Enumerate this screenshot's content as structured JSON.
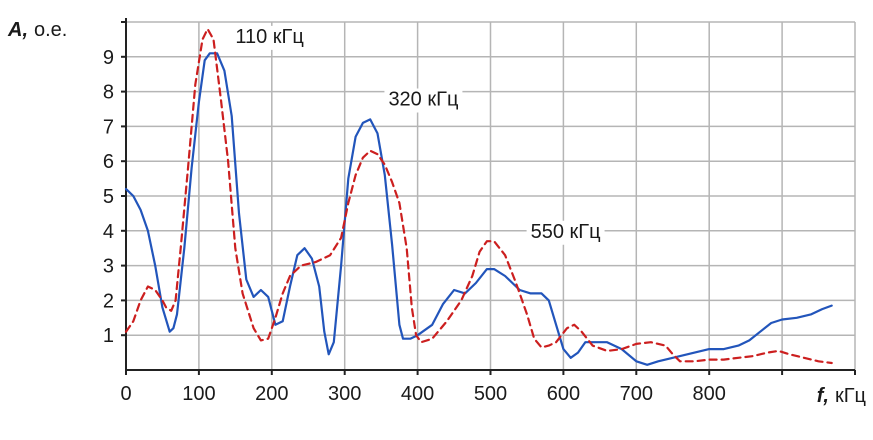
{
  "chart_data": {
    "type": "line",
    "xlabel_var": "f,",
    "xlabel_unit": "кГц",
    "ylabel_var": "A,",
    "ylabel_unit": "о.е.",
    "xlim": [
      0,
      1000
    ],
    "ylim": [
      0,
      10
    ],
    "x_ticks": [
      "0",
      "100",
      "200",
      "300",
      "400",
      "500",
      "600",
      "700",
      "800"
    ],
    "y_ticks": [
      "1",
      "2",
      "3",
      "4",
      "5",
      "6",
      "7",
      "8",
      "9"
    ],
    "grid": true,
    "annotations": [
      {
        "text": "110 кГц",
        "x": 150,
        "y": 9.4
      },
      {
        "text": "320 кГц",
        "x": 360,
        "y": 7.6
      },
      {
        "text": "550 кГц",
        "x": 555,
        "y": 3.8
      }
    ],
    "series": [
      {
        "style": "solid",
        "color": "#2255bb",
        "points": [
          [
            0,
            5.2
          ],
          [
            10,
            5.0
          ],
          [
            20,
            4.6
          ],
          [
            30,
            4.0
          ],
          [
            40,
            3.0
          ],
          [
            50,
            1.8
          ],
          [
            60,
            1.1
          ],
          [
            65,
            1.2
          ],
          [
            70,
            1.6
          ],
          [
            80,
            3.5
          ],
          [
            90,
            5.8
          ],
          [
            100,
            7.7
          ],
          [
            108,
            8.9
          ],
          [
            115,
            9.1
          ],
          [
            125,
            9.1
          ],
          [
            135,
            8.6
          ],
          [
            145,
            7.3
          ],
          [
            155,
            4.5
          ],
          [
            165,
            2.6
          ],
          [
            175,
            2.1
          ],
          [
            185,
            2.3
          ],
          [
            195,
            2.1
          ],
          [
            205,
            1.3
          ],
          [
            215,
            1.4
          ],
          [
            225,
            2.4
          ],
          [
            235,
            3.3
          ],
          [
            245,
            3.5
          ],
          [
            255,
            3.2
          ],
          [
            265,
            2.4
          ],
          [
            272,
            1.1
          ],
          [
            278,
            0.45
          ],
          [
            285,
            0.8
          ],
          [
            295,
            3.0
          ],
          [
            305,
            5.5
          ],
          [
            315,
            6.7
          ],
          [
            325,
            7.1
          ],
          [
            335,
            7.2
          ],
          [
            345,
            6.8
          ],
          [
            355,
            5.6
          ],
          [
            365,
            3.6
          ],
          [
            375,
            1.3
          ],
          [
            380,
            0.9
          ],
          [
            390,
            0.9
          ],
          [
            400,
            1.0
          ],
          [
            420,
            1.3
          ],
          [
            435,
            1.9
          ],
          [
            450,
            2.3
          ],
          [
            465,
            2.2
          ],
          [
            480,
            2.5
          ],
          [
            495,
            2.9
          ],
          [
            505,
            2.9
          ],
          [
            520,
            2.7
          ],
          [
            540,
            2.3
          ],
          [
            555,
            2.2
          ],
          [
            570,
            2.2
          ],
          [
            580,
            2.0
          ],
          [
            590,
            1.3
          ],
          [
            600,
            0.6
          ],
          [
            610,
            0.35
          ],
          [
            620,
            0.5
          ],
          [
            630,
            0.8
          ],
          [
            645,
            0.8
          ],
          [
            660,
            0.8
          ],
          [
            680,
            0.6
          ],
          [
            700,
            0.25
          ],
          [
            715,
            0.15
          ],
          [
            730,
            0.25
          ],
          [
            750,
            0.35
          ],
          [
            780,
            0.5
          ],
          [
            800,
            0.6
          ],
          [
            820,
            0.6
          ],
          [
            840,
            0.7
          ],
          [
            855,
            0.85
          ],
          [
            870,
            1.1
          ],
          [
            885,
            1.35
          ],
          [
            900,
            1.45
          ],
          [
            920,
            1.5
          ],
          [
            940,
            1.6
          ],
          [
            955,
            1.75
          ],
          [
            968,
            1.85
          ]
        ]
      },
      {
        "style": "dashed",
        "color": "#cc1f1f",
        "points": [
          [
            0,
            1.1
          ],
          [
            10,
            1.4
          ],
          [
            20,
            2.0
          ],
          [
            30,
            2.4
          ],
          [
            40,
            2.3
          ],
          [
            50,
            2.0
          ],
          [
            55,
            1.8
          ],
          [
            62,
            1.7
          ],
          [
            68,
            2.0
          ],
          [
            75,
            3.5
          ],
          [
            85,
            5.8
          ],
          [
            95,
            8.2
          ],
          [
            105,
            9.5
          ],
          [
            112,
            9.8
          ],
          [
            120,
            9.5
          ],
          [
            130,
            7.8
          ],
          [
            140,
            6.0
          ],
          [
            150,
            3.5
          ],
          [
            160,
            2.2
          ],
          [
            175,
            1.2
          ],
          [
            185,
            0.85
          ],
          [
            195,
            0.9
          ],
          [
            205,
            1.5
          ],
          [
            215,
            2.2
          ],
          [
            225,
            2.7
          ],
          [
            240,
            3.0
          ],
          [
            260,
            3.1
          ],
          [
            280,
            3.3
          ],
          [
            295,
            3.8
          ],
          [
            305,
            4.8
          ],
          [
            315,
            5.6
          ],
          [
            325,
            6.1
          ],
          [
            335,
            6.3
          ],
          [
            345,
            6.2
          ],
          [
            355,
            5.9
          ],
          [
            365,
            5.4
          ],
          [
            375,
            4.8
          ],
          [
            385,
            3.5
          ],
          [
            392,
            1.8
          ],
          [
            398,
            1.0
          ],
          [
            405,
            0.8
          ],
          [
            420,
            0.9
          ],
          [
            440,
            1.4
          ],
          [
            460,
            2.0
          ],
          [
            475,
            2.7
          ],
          [
            485,
            3.4
          ],
          [
            495,
            3.7
          ],
          [
            505,
            3.7
          ],
          [
            520,
            3.3
          ],
          [
            535,
            2.5
          ],
          [
            550,
            1.6
          ],
          [
            560,
            0.9
          ],
          [
            570,
            0.65
          ],
          [
            580,
            0.7
          ],
          [
            590,
            0.8
          ],
          [
            605,
            1.2
          ],
          [
            615,
            1.3
          ],
          [
            625,
            1.1
          ],
          [
            640,
            0.7
          ],
          [
            660,
            0.55
          ],
          [
            680,
            0.6
          ],
          [
            700,
            0.75
          ],
          [
            720,
            0.8
          ],
          [
            740,
            0.7
          ],
          [
            750,
            0.45
          ],
          [
            760,
            0.25
          ],
          [
            780,
            0.25
          ],
          [
            800,
            0.3
          ],
          [
            820,
            0.3
          ],
          [
            840,
            0.35
          ],
          [
            860,
            0.4
          ],
          [
            880,
            0.5
          ],
          [
            895,
            0.55
          ],
          [
            910,
            0.45
          ],
          [
            930,
            0.35
          ],
          [
            950,
            0.25
          ],
          [
            968,
            0.2
          ]
        ]
      }
    ]
  }
}
